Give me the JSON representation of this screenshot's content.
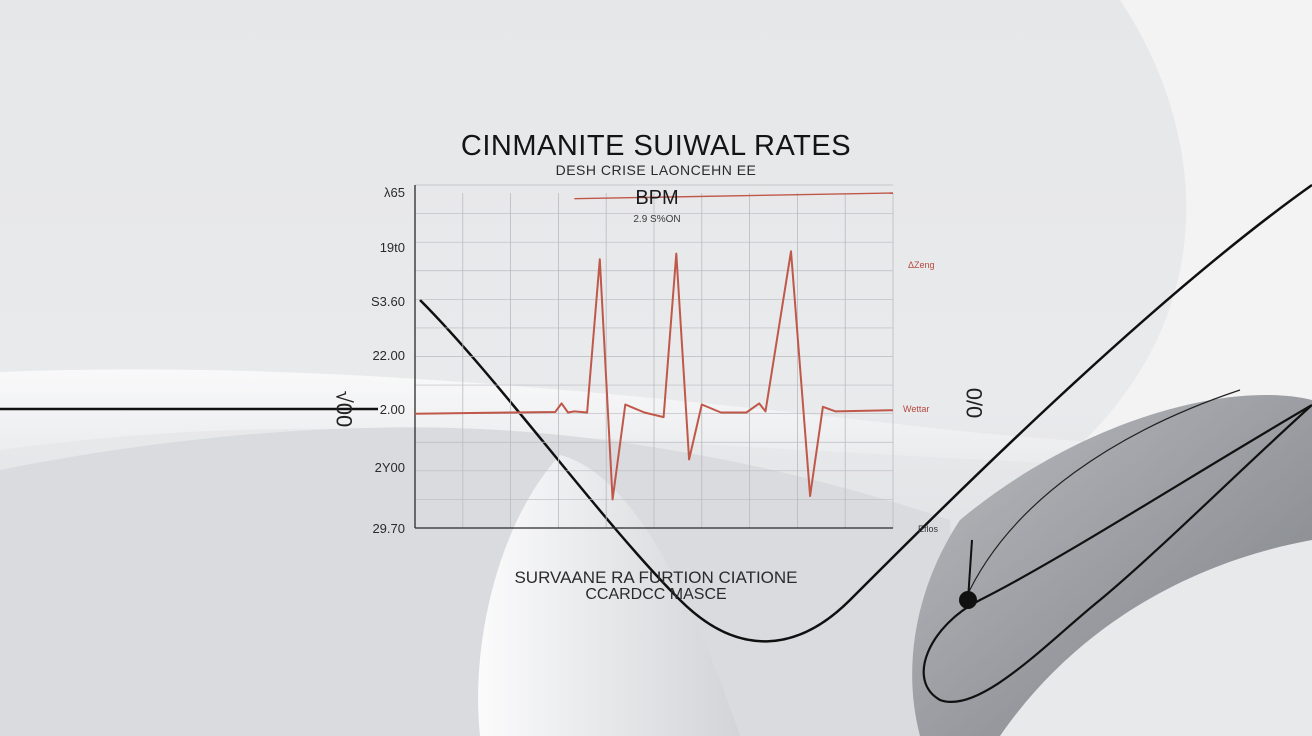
{
  "chart_data": {
    "type": "line",
    "title": "CINMANITE SUIWAL RATES",
    "subtitle": "DESH CRISE LAONCEHN EE",
    "unit_label": "BPM",
    "unit_sublabel": "2.9 S%ON",
    "footer_line1": "SURVAANE RA FURTION CIATIONE",
    "footer_line2": "CCARDCC MASCE",
    "y_tick_labels": [
      "λ65",
      "19t0",
      "S3.60",
      "22.00",
      "2.00",
      "2Y00",
      "29.70"
    ],
    "side_label_left": "√00",
    "side_label_right": "0/0",
    "annotation_upper": "ΔZeng",
    "annotation_lower": "Wettar",
    "x_axis_label": "Eflos",
    "grid": true,
    "colors": {
      "series": "#c0584a",
      "axes": "#2a2a2a",
      "grid": "#b9bbbf"
    },
    "series": [
      {
        "values": [
          [
            0,
            0
          ],
          [
            30,
            0.1
          ],
          [
            44,
            0.15
          ],
          [
            46,
            0.9
          ],
          [
            48,
            0.1
          ],
          [
            50,
            0.2
          ],
          [
            54,
            0.1
          ],
          [
            58,
            13.5
          ],
          [
            62,
            -7.5
          ],
          [
            66,
            0.8
          ],
          [
            72,
            0.1
          ],
          [
            78,
            -0.3
          ],
          [
            82,
            14.0
          ],
          [
            86,
            -4.0
          ],
          [
            90,
            0.8
          ],
          [
            96,
            0.1
          ],
          [
            104,
            0.1
          ],
          [
            108,
            0.9
          ],
          [
            110,
            0.2
          ],
          [
            118,
            14.2
          ],
          [
            124,
            -7.2
          ],
          [
            128,
            0.6
          ],
          [
            132,
            0.2
          ],
          [
            150,
            0.3
          ]
        ]
      },
      {
        "values": [
          [
            50,
            18.8
          ],
          [
            150,
            19.3
          ]
        ]
      }
    ],
    "xlim": [
      0,
      150
    ],
    "ylim": [
      -10,
      20
    ]
  },
  "colors": {
    "accent": "#c0584a",
    "curve": "#101010"
  }
}
